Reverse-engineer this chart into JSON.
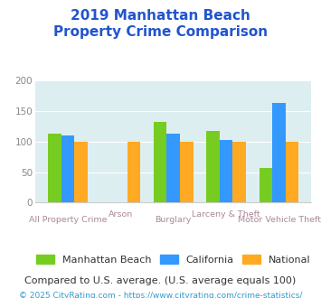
{
  "title_line1": "2019 Manhattan Beach",
  "title_line2": "Property Crime Comparison",
  "categories": [
    "All Property Crime",
    "Arson",
    "Burglary",
    "Larceny & Theft",
    "Motor Vehicle Theft"
  ],
  "cat_labels_row1": [
    "",
    "Arson",
    "",
    "Larceny & Theft",
    ""
  ],
  "cat_labels_row2": [
    "All Property Crime",
    "",
    "Burglary",
    "",
    "Motor Vehicle Theft"
  ],
  "series": {
    "Manhattan Beach": [
      113,
      0,
      132,
      118,
      57
    ],
    "California": [
      110,
      0,
      113,
      103,
      163
    ],
    "National": [
      100,
      100,
      100,
      100,
      100
    ]
  },
  "colors": {
    "Manhattan Beach": "#77cc22",
    "California": "#3399ff",
    "National": "#ffaa22"
  },
  "ylim": [
    0,
    200
  ],
  "yticks": [
    0,
    50,
    100,
    150,
    200
  ],
  "plot_bg": "#ddeef0",
  "title_color": "#2255cc",
  "xlabel_color": "#aa8899",
  "footer_text": "Compared to U.S. average. (U.S. average equals 100)",
  "footer_color": "#333333",
  "copyright_text": "© 2025 CityRating.com - https://www.cityrating.com/crime-statistics/",
  "copyright_color": "#3399cc",
  "title_fontsize": 11,
  "legend_fontsize": 8,
  "footer_fontsize": 8,
  "copyright_fontsize": 6.5
}
